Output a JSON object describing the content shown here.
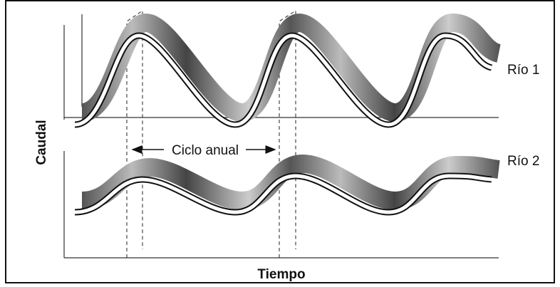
{
  "labels": {
    "river_1": "Río 1",
    "river_2": "Río 2",
    "y_axis": "Caudal",
    "x_axis": "Tiempo",
    "cycle": "Ciclo anual"
  }
}
